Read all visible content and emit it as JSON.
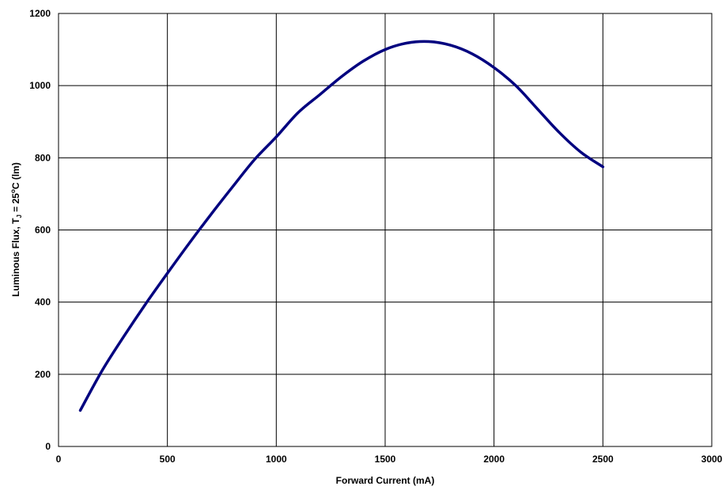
{
  "chart_data": {
    "type": "line",
    "xlabel": "Forward Current (mA)",
    "ylabel": {
      "prefix": "Luminous Flux, T",
      "subscript": "J",
      "middle": " = 25",
      "superscript": "o",
      "suffix": "C (lm)"
    },
    "xlim": [
      0,
      3000
    ],
    "ylim": [
      0,
      1200
    ],
    "x_ticks": [
      "0",
      "500",
      "1000",
      "1500",
      "2000",
      "2500",
      "3000"
    ],
    "y_ticks": [
      "0",
      "200",
      "400",
      "600",
      "800",
      "1000",
      "1200"
    ],
    "grid": true,
    "line_color": "#00007f",
    "series": [
      {
        "x": [
          100,
          200,
          300,
          400,
          500,
          600,
          700,
          800,
          900,
          1000,
          1100,
          1200,
          1300,
          1400,
          1500,
          1600,
          1700,
          1800,
          1900,
          2000,
          2100,
          2200,
          2300,
          2400,
          2500
        ],
        "values": [
          100,
          210,
          305,
          395,
          480,
          563,
          643,
          720,
          795,
          858,
          925,
          975,
          1025,
          1068,
          1100,
          1118,
          1122,
          1112,
          1088,
          1050,
          1000,
          935,
          870,
          815,
          775
        ]
      }
    ]
  }
}
